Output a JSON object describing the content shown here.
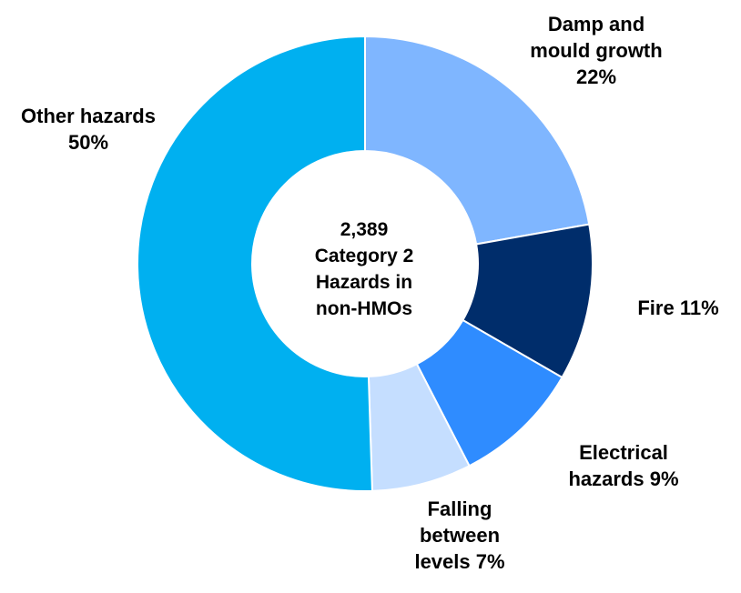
{
  "chart_data": {
    "type": "donut",
    "categories": [
      "Damp and mould growth",
      "Fire",
      "Electrical hazards",
      "Falling between levels",
      "Other hazards"
    ],
    "values": [
      22,
      11,
      9,
      7,
      50
    ],
    "value_labels": [
      "22%",
      "11%",
      "9%",
      "7%",
      "50%"
    ],
    "colors": [
      "#7fb6ff",
      "#002d6b",
      "#2f8cff",
      "#c5deff",
      "#00b0f0"
    ],
    "center_text": [
      "2,389",
      "Category 2",
      "Hazards in",
      "non-HMOs"
    ]
  }
}
